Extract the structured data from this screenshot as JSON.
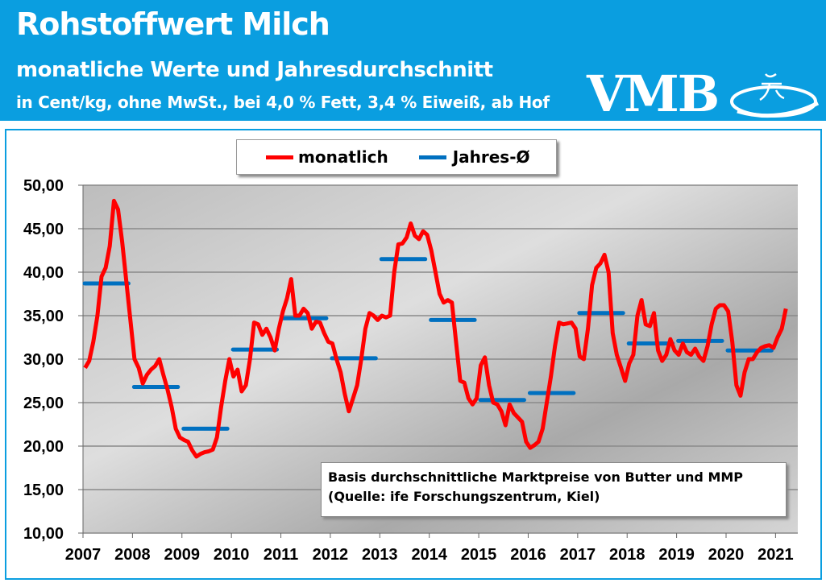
{
  "header": {
    "title": "Rohstoffwert Milch",
    "subtitle": "monatliche Werte und Jahresdurchschnitt",
    "unit_line": "in Cent/kg, ohne MwSt., bei 4,0 % Fett, 3,4 % Eiweiß, ab Hof",
    "logo_text": "VMB",
    "color": "#0a9ee0"
  },
  "chart_data": {
    "type": "line",
    "ylim": [
      10,
      50
    ],
    "yticks": [
      "10,00",
      "15,00",
      "20,00",
      "25,00",
      "30,00",
      "35,00",
      "40,00",
      "45,00",
      "50,00"
    ],
    "xticks": [
      "2007",
      "2008",
      "2009",
      "2010",
      "2011",
      "2012",
      "2013",
      "2014",
      "2015",
      "2016",
      "2017",
      "2018",
      "2019",
      "2020",
      "2021"
    ],
    "grid": true,
    "legend_position": "top-center",
    "series": [
      {
        "name": "monatlich",
        "color": "#ff0000",
        "start": "2007-01",
        "frequency": "monthly",
        "values": [
          29,
          29.8,
          32,
          35,
          39.5,
          40.5,
          43,
          48.2,
          47.2,
          43.5,
          39,
          34.5,
          30,
          29,
          27.2,
          28.2,
          28.8,
          29.2,
          30,
          28.2,
          26.5,
          24.5,
          22,
          21,
          20.7,
          20.5,
          19.5,
          18.8,
          19.1,
          19.3,
          19.4,
          19.6,
          21,
          24.5,
          27.5,
          30,
          28,
          28.8,
          26.3,
          27,
          30,
          34.2,
          34,
          32.8,
          33.5,
          32.5,
          31,
          33.5,
          35.5,
          37,
          39.2,
          35,
          35,
          35.8,
          35.3,
          33.5,
          34.3,
          34.2,
          33,
          32,
          31.8,
          30,
          28.5,
          26,
          24,
          25.5,
          27,
          30,
          33.5,
          35.3,
          35,
          34.5,
          35,
          34.8,
          35,
          40,
          43.2,
          43.3,
          44,
          45.6,
          44.2,
          43.8,
          44.7,
          44.3,
          42.5,
          40,
          37.5,
          36.5,
          36.8,
          36.5,
          32,
          27.5,
          27.3,
          25.5,
          24.8,
          25.5,
          29.3,
          30.2,
          27,
          25,
          24.8,
          24,
          22.4,
          24.8,
          23.8,
          23.3,
          22.8,
          20.5,
          19.8,
          20.1,
          20.5,
          22,
          25,
          28,
          31.5,
          34.2,
          34,
          34.1,
          34.2,
          33.5,
          30.3,
          30,
          33.5,
          38.5,
          40.5,
          41,
          42,
          40,
          33,
          30.5,
          29,
          27.5,
          29.5,
          30.5,
          35,
          36.8,
          34,
          33.8,
          35.3,
          31,
          29.8,
          30.5,
          32.3,
          31,
          30.5,
          31.8,
          30.8,
          30.5,
          31.2,
          30.3,
          29.8,
          31.5,
          34,
          35.8,
          36.2,
          36.2,
          35.5,
          32,
          27,
          25.8,
          28.5,
          30,
          30,
          30.8,
          31.3,
          31.5,
          31.6,
          31.3,
          32.5,
          33.5,
          35.8
        ]
      },
      {
        "name": "Jahres-Ø",
        "color": "#0070c0",
        "years": [
          2007,
          2008,
          2009,
          2010,
          2011,
          2012,
          2013,
          2014,
          2015,
          2016,
          2017,
          2018,
          2019,
          2020
        ],
        "values": [
          38.7,
          26.8,
          22.0,
          31.1,
          34.7,
          30.1,
          41.5,
          34.5,
          25.3,
          26.1,
          35.3,
          31.8,
          32.1,
          31.0
        ]
      }
    ]
  },
  "note": {
    "line1": "Basis durchschnittliche Marktpreise von Butter und MMP",
    "line2": "(Quelle: ife Forschungszentrum, Kiel)"
  }
}
